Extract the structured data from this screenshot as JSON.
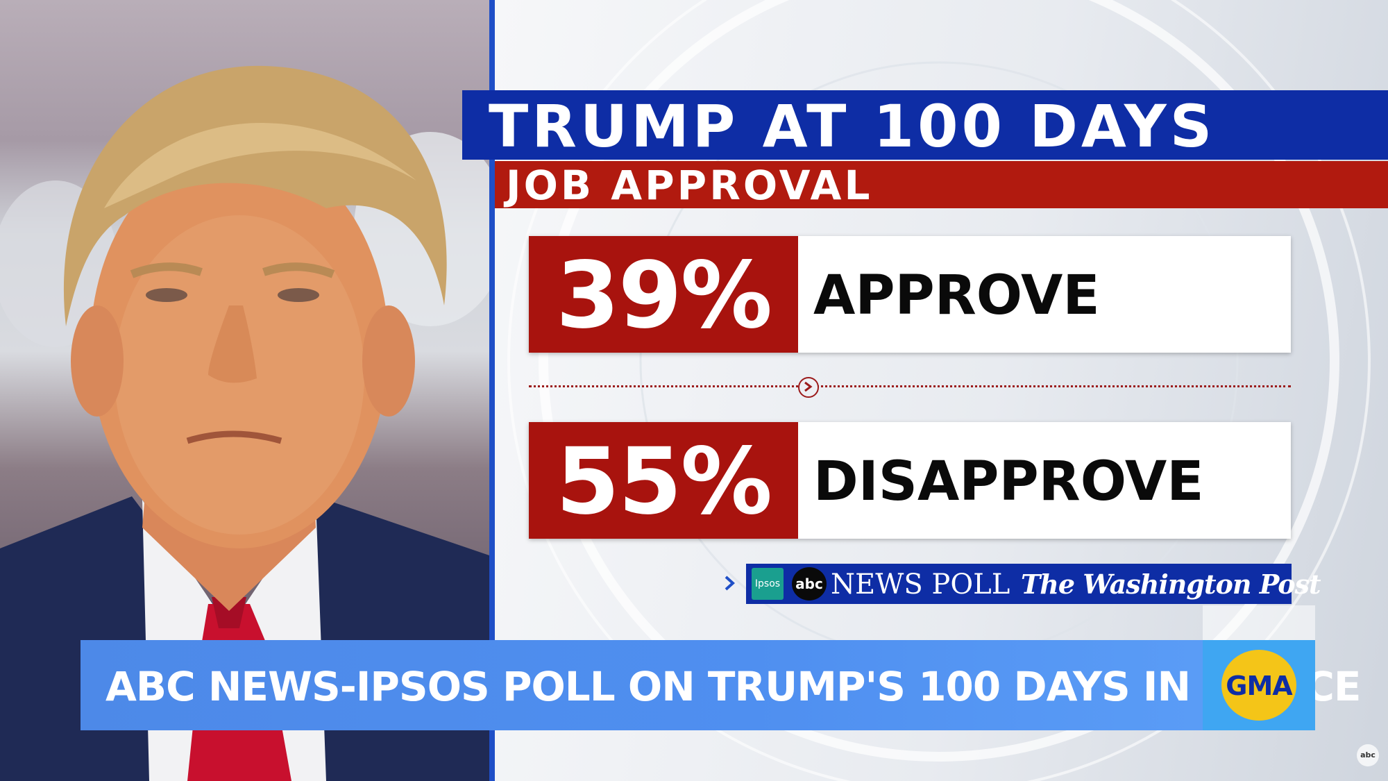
{
  "headline": {
    "title": "TRUMP AT 100 DAYS",
    "subtitle": "JOB APPROVAL"
  },
  "results": [
    {
      "percent": "39%",
      "label": "APPROVE",
      "value": 39
    },
    {
      "percent": "55%",
      "label": "DISAPPROVE",
      "value": 55
    }
  ],
  "source": {
    "ipsos": "Ipsos",
    "abc": "abc",
    "news_poll": "NEWS POLL",
    "wapo": "The Washington Post",
    "icons": {
      "chevron": "chevron-right-icon",
      "divider": "arrow-right-circle-icon"
    }
  },
  "lower_third": {
    "headline": "ABC NEWS-IPSOS POLL ON TRUMP'S 100 DAYS IN OFFICE",
    "show_logo": "GMA"
  },
  "corner": {
    "logo": "abc"
  },
  "colors": {
    "headline_blue": "#0e2da5",
    "subhead_red": "#b11a0f",
    "percent_red": "#a8130e",
    "lower_third_blue": "#4f8ff0",
    "gma_yellow": "#f4c518"
  }
}
